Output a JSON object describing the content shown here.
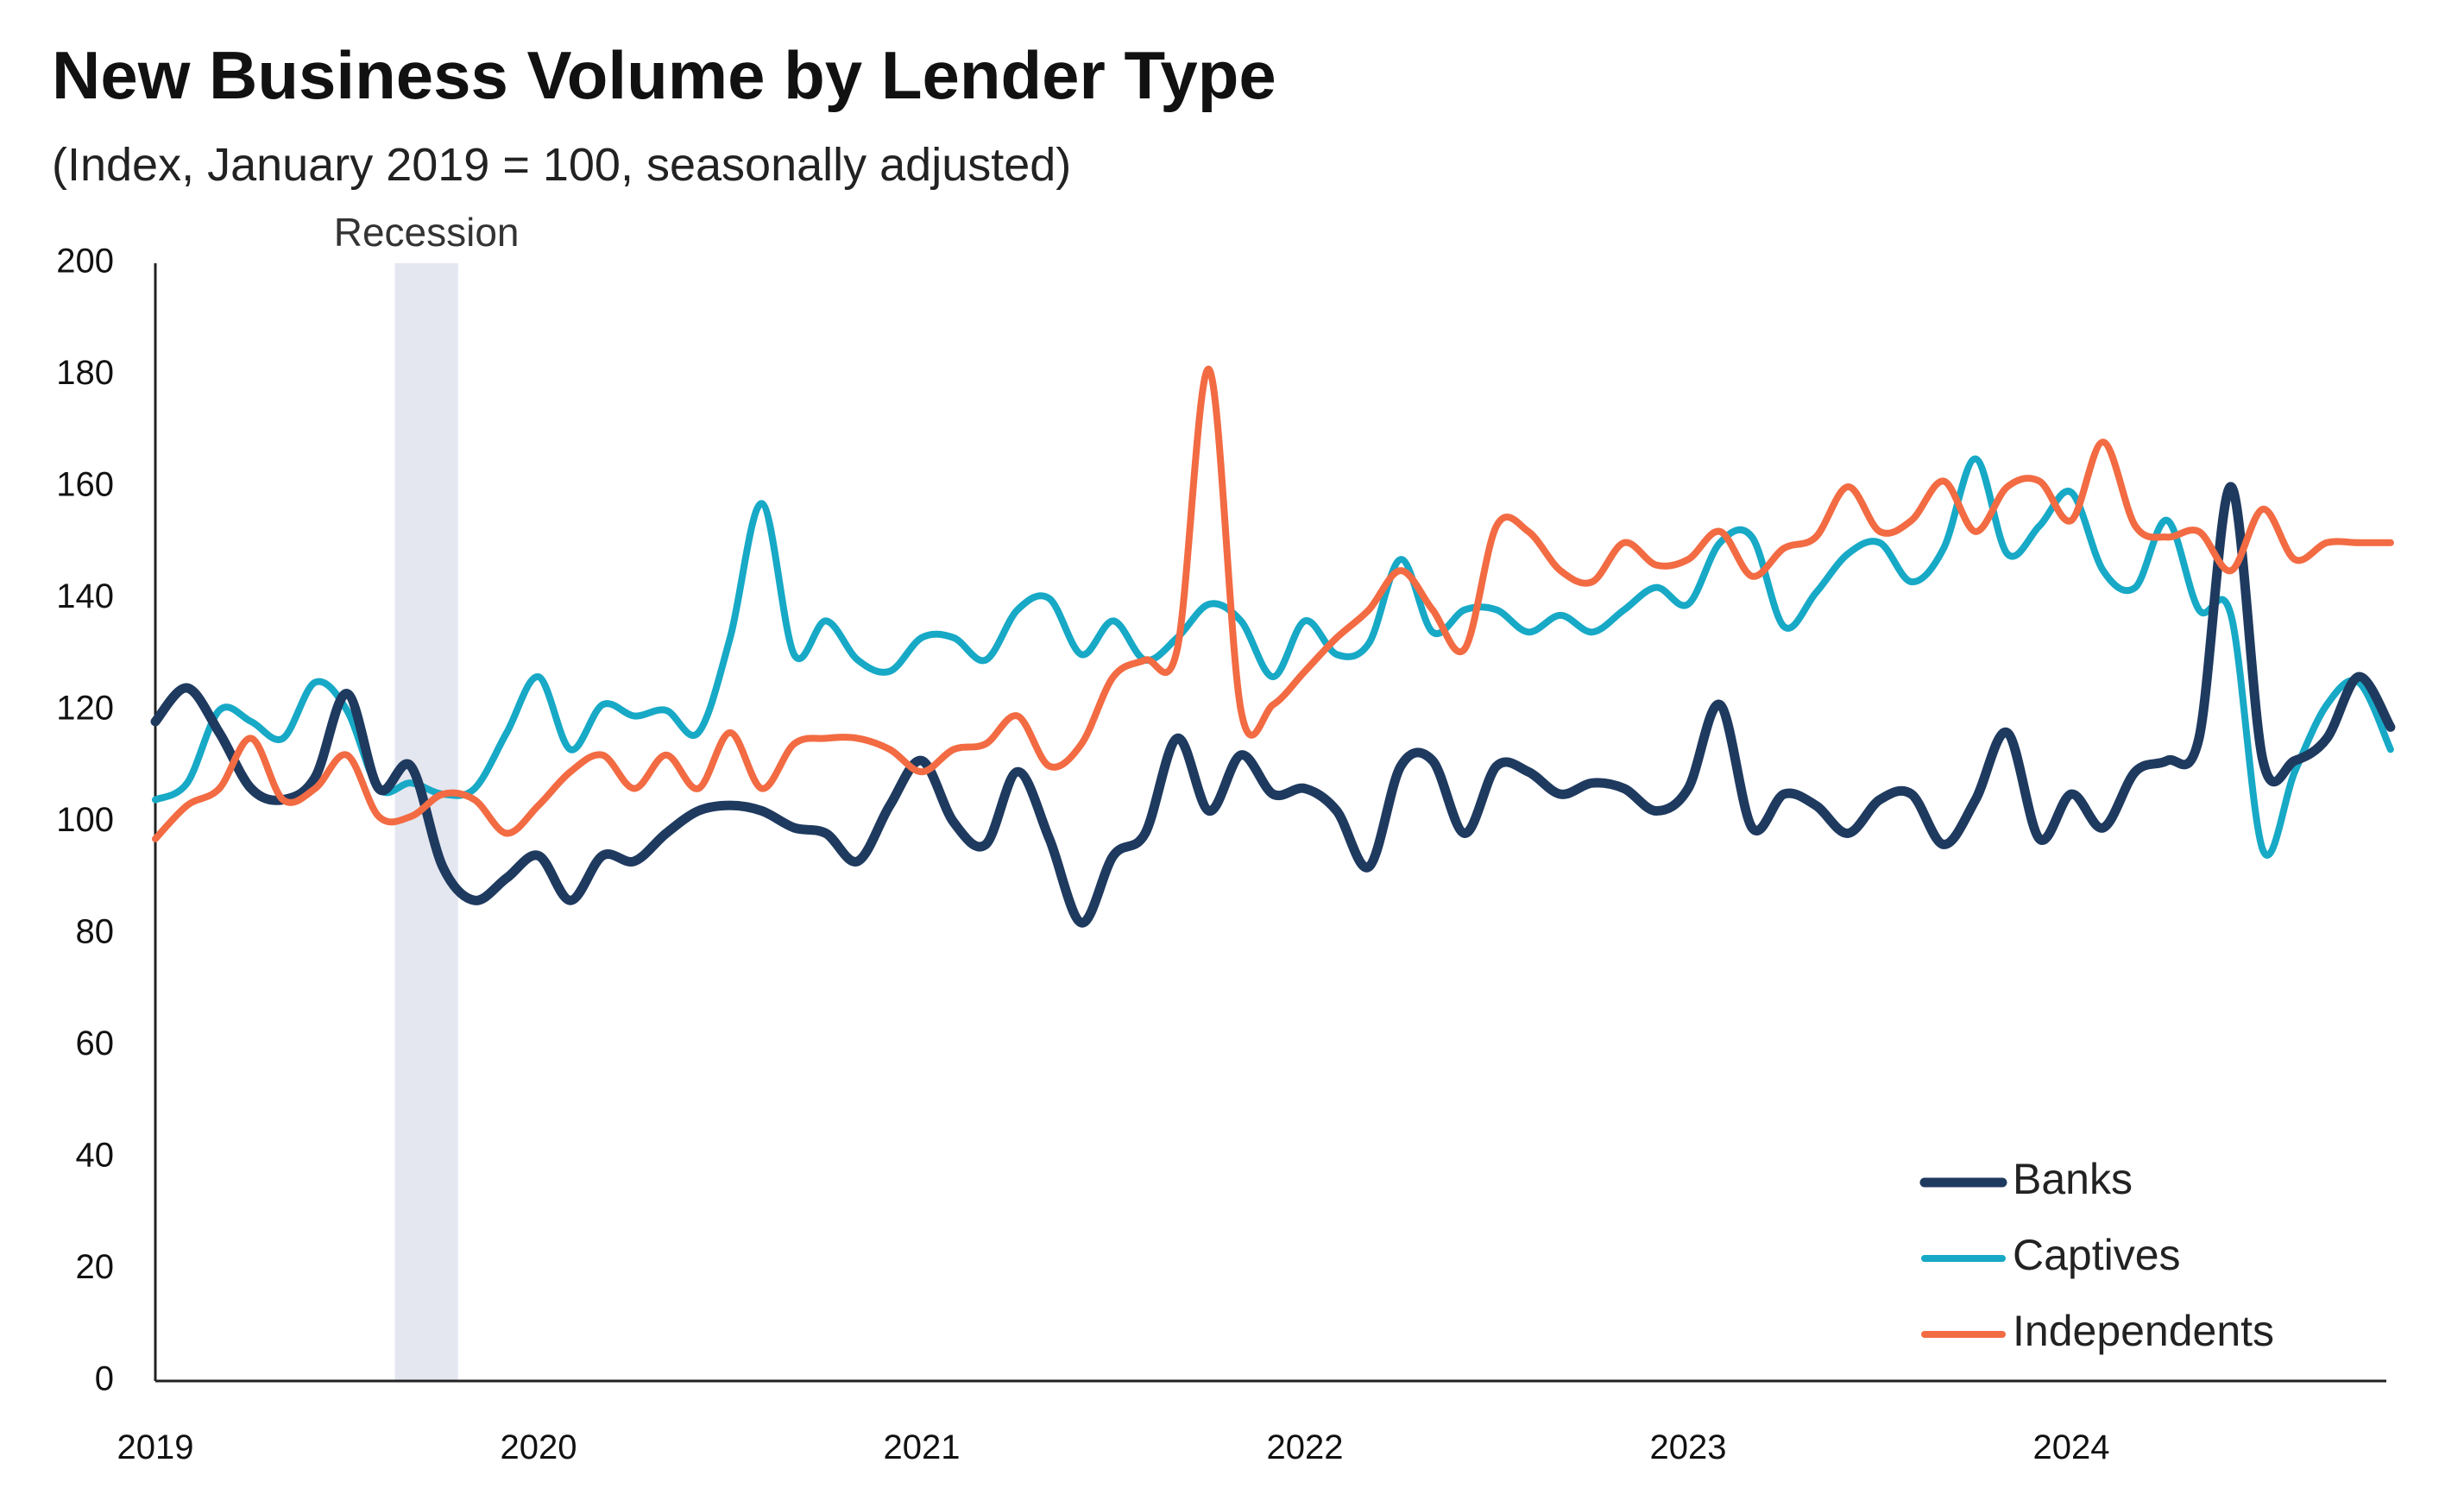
{
  "chart_data": {
    "type": "line",
    "title": "New Business Volume by Lender Type",
    "subtitle": "(Index, January 2019 = 100, seasonally adjusted)",
    "x_tick_labels": [
      "2019",
      "2020",
      "2021",
      "2022",
      "2023",
      "2024"
    ],
    "x_range": [
      2019.0,
      2024.83
    ],
    "y_ticks": [
      0,
      20,
      40,
      60,
      80,
      100,
      120,
      140,
      160,
      180,
      200
    ],
    "ylim": [
      0,
      200
    ],
    "grid": false,
    "legend_position": "bottom-right",
    "annotation": {
      "label": "Recession",
      "start": 2019.625,
      "end": 2019.79,
      "color": "#e4e7ef"
    },
    "series": [
      {
        "name": "Banks",
        "color": "#1f3a5f",
        "x": [
          2019.0,
          2019.083,
          2019.167,
          2019.25,
          2019.333,
          2019.417,
          2019.5,
          2019.583,
          2019.667,
          2019.75,
          2019.833,
          2019.917,
          2020.0,
          2020.083,
          2020.167,
          2020.25,
          2020.333,
          2020.417,
          2020.5,
          2020.583,
          2020.667,
          2020.75,
          2020.833,
          2020.917,
          2021.0,
          2021.083,
          2021.167,
          2021.25,
          2021.333,
          2021.417,
          2021.5,
          2021.583,
          2021.667,
          2021.75,
          2021.833,
          2021.917,
          2022.0,
          2022.083,
          2022.167,
          2022.25,
          2022.333,
          2022.417,
          2022.5,
          2022.583,
          2022.667,
          2022.75,
          2022.833,
          2022.917,
          2023.0,
          2023.083,
          2023.167,
          2023.25,
          2023.333,
          2023.417,
          2023.5,
          2023.583,
          2023.667,
          2023.75,
          2023.833,
          2023.917,
          2024.0,
          2024.083,
          2024.167,
          2024.25,
          2024.333,
          2024.417,
          2024.5,
          2024.583,
          2024.667,
          2024.75,
          2024.833
        ],
        "y": [
          118,
          124,
          116,
          106,
          104,
          108,
          123,
          106,
          110,
          92,
          86,
          90,
          94,
          86,
          94,
          93,
          98,
          102,
          103,
          102,
          99,
          98,
          93,
          103,
          111,
          100,
          96,
          109,
          97,
          82,
          94,
          98,
          115,
          102,
          112,
          105,
          106,
          102,
          92,
          110,
          111,
          98,
          110,
          109,
          105,
          107,
          106,
          102,
          106,
          121,
          99,
          105,
          103,
          98,
          104,
          105,
          96,
          104,
          116,
          97,
          105,
          99,
          109,
          111,
          115,
          160,
          111,
          111,
          115,
          126,
          117
        ]
      },
      {
        "name": "Captives",
        "color": "#17a9c6",
        "x": [
          2019.0,
          2019.083,
          2019.167,
          2019.25,
          2019.333,
          2019.417,
          2019.5,
          2019.583,
          2019.667,
          2019.75,
          2019.833,
          2019.917,
          2020.0,
          2020.083,
          2020.167,
          2020.25,
          2020.333,
          2020.417,
          2020.5,
          2020.583,
          2020.667,
          2020.75,
          2020.833,
          2020.917,
          2021.0,
          2021.083,
          2021.167,
          2021.25,
          2021.333,
          2021.417,
          2021.5,
          2021.583,
          2021.667,
          2021.75,
          2021.833,
          2021.917,
          2022.0,
          2022.083,
          2022.167,
          2022.25,
          2022.333,
          2022.417,
          2022.5,
          2022.583,
          2022.667,
          2022.75,
          2022.833,
          2022.917,
          2023.0,
          2023.083,
          2023.167,
          2023.25,
          2023.333,
          2023.417,
          2023.5,
          2023.583,
          2023.667,
          2023.75,
          2023.833,
          2023.917,
          2024.0,
          2024.083,
          2024.167,
          2024.25,
          2024.333,
          2024.417,
          2024.5,
          2024.583,
          2024.667,
          2024.75,
          2024.833
        ],
        "y": [
          104,
          107,
          120,
          118,
          115,
          125,
          120,
          106,
          107,
          105,
          106,
          116,
          126,
          113,
          121,
          119,
          120,
          116,
          133,
          157,
          130,
          136,
          129,
          127,
          133,
          133,
          129,
          138,
          140,
          130,
          136,
          129,
          133,
          139,
          136,
          126,
          136,
          130,
          132,
          147,
          134,
          138,
          138,
          134,
          137,
          134,
          138,
          142,
          139,
          150,
          151,
          135,
          141,
          148,
          150,
          143,
          149,
          165,
          148,
          153,
          159,
          145,
          142,
          154,
          138,
          137,
          95,
          109,
          121,
          125,
          113
        ]
      },
      {
        "name": "Independents",
        "color": "#f26b43",
        "x": [
          2019.0,
          2019.083,
          2019.167,
          2019.25,
          2019.333,
          2019.417,
          2019.5,
          2019.583,
          2019.667,
          2019.75,
          2019.833,
          2019.917,
          2020.0,
          2020.083,
          2020.167,
          2020.25,
          2020.333,
          2020.417,
          2020.5,
          2020.583,
          2020.667,
          2020.75,
          2020.833,
          2020.917,
          2021.0,
          2021.083,
          2021.167,
          2021.25,
          2021.333,
          2021.417,
          2021.5,
          2021.583,
          2021.667,
          2021.75,
          2021.833,
          2021.917,
          2022.0,
          2022.083,
          2022.167,
          2022.25,
          2022.333,
          2022.417,
          2022.5,
          2022.583,
          2022.667,
          2022.75,
          2022.833,
          2022.917,
          2023.0,
          2023.083,
          2023.167,
          2023.25,
          2023.333,
          2023.417,
          2023.5,
          2023.583,
          2023.667,
          2023.75,
          2023.833,
          2023.917,
          2024.0,
          2024.083,
          2024.167,
          2024.25,
          2024.333,
          2024.417,
          2024.5,
          2024.583,
          2024.667,
          2024.75,
          2024.833
        ],
        "y": [
          97,
          103,
          106,
          115,
          104,
          106,
          112,
          101,
          101,
          105,
          104,
          98,
          103,
          109,
          112,
          106,
          112,
          106,
          116,
          106,
          114,
          115,
          115,
          113,
          109,
          113,
          114,
          119,
          110,
          114,
          126,
          129,
          131,
          181,
          120,
          121,
          127,
          133,
          138,
          145,
          138,
          131,
          153,
          152,
          145,
          143,
          150,
          146,
          147,
          152,
          144,
          149,
          151,
          160,
          152,
          154,
          161,
          152,
          160,
          161,
          154,
          168,
          153,
          151,
          152,
          145,
          156,
          147,
          150,
          150,
          150
        ]
      }
    ]
  }
}
